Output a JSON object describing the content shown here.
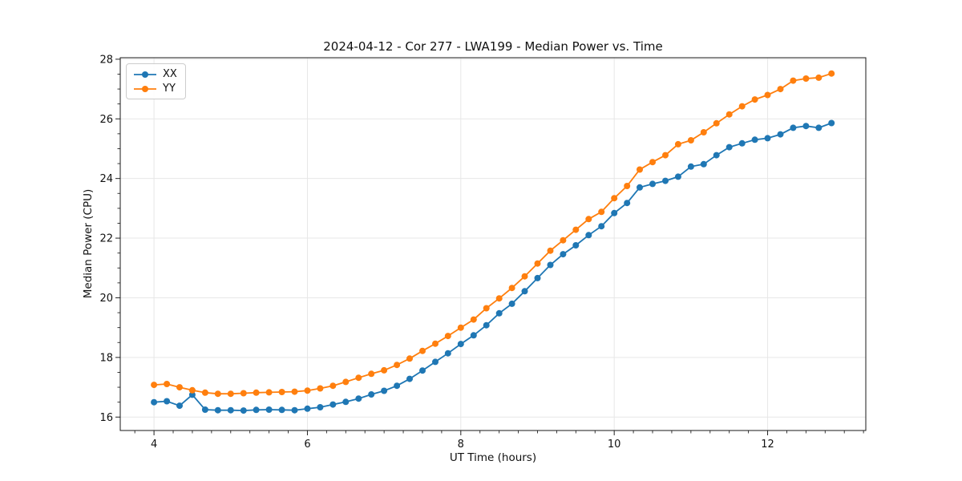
{
  "chart_data": {
    "type": "line",
    "title": "2024-04-12 - Cor 277 - LWA199 - Median Power vs. Time",
    "xlabel": "UT Time (hours)",
    "ylabel": "Median Power (CPU)",
    "xlim": [
      3.56,
      13.28
    ],
    "ylim": [
      15.55,
      28.05
    ],
    "xticks": [
      4,
      6,
      8,
      10,
      12
    ],
    "yticks": [
      16,
      18,
      20,
      22,
      24,
      26,
      28
    ],
    "x_minor_step": 0.25,
    "y_minor_step": 0.5,
    "grid": "major",
    "grid_color": "#e7e7e7",
    "legend_position": "upper-left",
    "x": [
      4.0,
      4.167,
      4.333,
      4.5,
      4.667,
      4.833,
      5.0,
      5.167,
      5.333,
      5.5,
      5.667,
      5.833,
      6.0,
      6.167,
      6.333,
      6.5,
      6.667,
      6.833,
      7.0,
      7.167,
      7.333,
      7.5,
      7.667,
      7.833,
      8.0,
      8.167,
      8.333,
      8.5,
      8.667,
      8.833,
      9.0,
      9.167,
      9.333,
      9.5,
      9.667,
      9.833,
      10.0,
      10.167,
      10.333,
      10.5,
      10.667,
      10.833,
      11.0,
      11.167,
      11.333,
      11.5,
      11.667,
      11.833,
      12.0,
      12.167,
      12.333,
      12.5,
      12.667,
      12.833
    ],
    "series": [
      {
        "name": "XX",
        "color": "#1f77b4",
        "values": [
          16.5,
          16.53,
          16.38,
          16.75,
          16.25,
          16.23,
          16.23,
          16.22,
          16.24,
          16.25,
          16.24,
          16.23,
          16.28,
          16.33,
          16.42,
          16.51,
          16.62,
          16.76,
          16.88,
          17.05,
          17.28,
          17.56,
          17.85,
          18.14,
          18.45,
          18.74,
          19.08,
          19.48,
          19.8,
          20.22,
          20.66,
          21.1,
          21.46,
          21.76,
          22.1,
          22.4,
          22.84,
          23.18,
          23.7,
          23.82,
          23.92,
          24.06,
          24.4,
          24.48,
          24.78,
          25.05,
          25.18,
          25.3,
          25.35,
          25.48,
          25.7,
          25.76,
          25.7,
          25.86
        ]
      },
      {
        "name": "YY",
        "color": "#ff7f0e",
        "values": [
          17.08,
          17.11,
          17.0,
          16.9,
          16.82,
          16.78,
          16.78,
          16.8,
          16.82,
          16.83,
          16.84,
          16.85,
          16.89,
          16.96,
          17.05,
          17.18,
          17.32,
          17.45,
          17.57,
          17.75,
          17.96,
          18.22,
          18.46,
          18.72,
          19.0,
          19.27,
          19.65,
          19.98,
          20.33,
          20.72,
          21.15,
          21.58,
          21.93,
          22.28,
          22.64,
          22.88,
          23.34,
          23.75,
          24.3,
          24.55,
          24.78,
          25.15,
          25.28,
          25.55,
          25.85,
          26.15,
          26.42,
          26.65,
          26.8,
          27.0,
          27.28,
          27.35,
          27.38,
          27.52
        ]
      }
    ]
  }
}
